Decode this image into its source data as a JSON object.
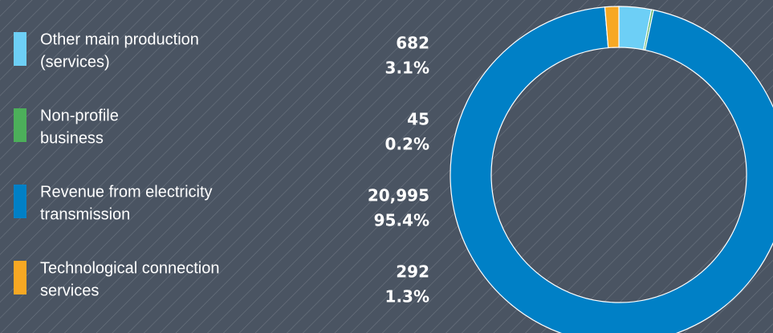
{
  "chart_data": {
    "type": "donut",
    "categories": [
      [
        "Other main production",
        "(services)"
      ],
      [
        "Non-profile",
        "business"
      ],
      [
        "Revenue from electricity",
        "transmission"
      ],
      [
        "Technological connection",
        "services"
      ]
    ],
    "values": [
      682,
      45,
      20995,
      292
    ],
    "value_labels": [
      "682",
      "45",
      "20,995",
      "292"
    ],
    "percentages": [
      3.1,
      0.2,
      95.4,
      1.3
    ],
    "percentage_labels": [
      "3.1%",
      "0.2%",
      "95.4%",
      "1.3%"
    ],
    "colors": [
      "#6dcff6",
      "#4caf5a",
      "#0080c6",
      "#f7a823"
    ]
  }
}
